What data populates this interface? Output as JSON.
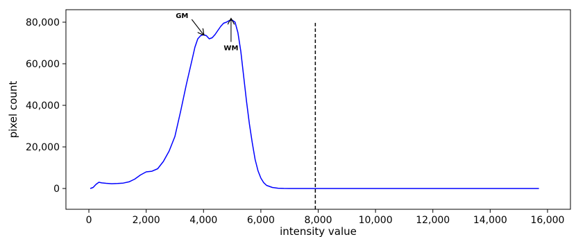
{
  "chart_data": {
    "type": "line",
    "title": "",
    "xlabel": "intensity value",
    "ylabel": "pixel count",
    "xlim": [
      -800,
      16800
    ],
    "ylim": [
      -10000,
      86000
    ],
    "x_ticks": [
      0,
      2000,
      4000,
      6000,
      8000,
      10000,
      12000,
      14000,
      16000
    ],
    "x_tick_labels": [
      "0",
      "2,000",
      "4,000",
      "6,000",
      "8,000",
      "10,000",
      "12,000",
      "14,000",
      "16,000"
    ],
    "y_ticks": [
      0,
      20000,
      40000,
      60000,
      80000
    ],
    "y_tick_labels": [
      "0",
      "20,000",
      "40,000",
      "60,000",
      "80,000"
    ],
    "grid": false,
    "series": [
      {
        "color": "#0000ff",
        "x": [
          50,
          150,
          250,
          350,
          450,
          600,
          800,
          1000,
          1200,
          1400,
          1600,
          1800,
          2000,
          2200,
          2400,
          2600,
          2800,
          3000,
          3200,
          3400,
          3600,
          3700,
          3800,
          3900,
          4000,
          4100,
          4200,
          4300,
          4400,
          4500,
          4600,
          4700,
          4800,
          4900,
          5000,
          5100,
          5200,
          5300,
          5400,
          5500,
          5600,
          5700,
          5800,
          5900,
          6000,
          6100,
          6200,
          6400,
          6600,
          6800,
          7000,
          7500,
          8000,
          9000,
          10000,
          12000,
          14000,
          15700
        ],
        "y": [
          0,
          500,
          2000,
          3000,
          2700,
          2500,
          2300,
          2400,
          2600,
          3200,
          4500,
          6500,
          8000,
          8300,
          9500,
          13000,
          18000,
          25000,
          37000,
          50000,
          62000,
          68000,
          72000,
          73500,
          74000,
          73500,
          72000,
          72500,
          74000,
          76000,
          78000,
          79500,
          80000,
          80800,
          81000,
          80000,
          75000,
          66000,
          54000,
          42000,
          31000,
          22000,
          14000,
          8500,
          5000,
          2800,
          1500,
          500,
          150,
          50,
          0,
          0,
          0,
          0,
          0,
          0,
          0,
          0
        ]
      }
    ],
    "vline": {
      "x": 7900,
      "y_range": [
        -10000,
        80000
      ],
      "style": "dashed",
      "color": "#000000"
    },
    "annotations": [
      {
        "text": "GM",
        "target_x": 4000,
        "target_y": 74000,
        "text_x": 3250,
        "text_y": 82000
      },
      {
        "text": "WM",
        "target_x": 4960,
        "target_y": 81500,
        "text_x": 4960,
        "text_y": 66500
      }
    ]
  }
}
